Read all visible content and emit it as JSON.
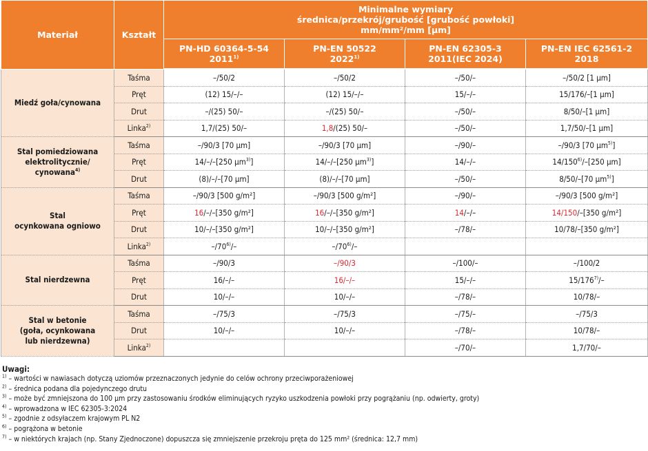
{
  "header": {
    "material": "Materiał",
    "shape": "Kształt",
    "dims_line1": "Minimalne wymiary",
    "dims_line2": "średnica/przekrój/grubość [grubość powłoki]",
    "dims_line3": "mm/mm²/mm [µm]",
    "standards": [
      {
        "name": "PN-HD 60364-5-54",
        "year": "2011",
        "sup": "1)"
      },
      {
        "name": "PN-EN 50522",
        "year": "2022",
        "sup": "1)"
      },
      {
        "name": "PN-EN 62305-3",
        "year": "2011(IEC 2024)",
        "sup": ""
      },
      {
        "name": "PN-EN IEC 62561-2",
        "year": "2018",
        "sup": ""
      }
    ]
  },
  "groups": [
    {
      "material": [
        {
          "t": "Miedź goła/cynowana"
        }
      ],
      "rows": [
        {
          "shape": [
            {
              "t": "Taśma"
            }
          ],
          "cells": [
            [
              {
                "t": "–/50/2"
              }
            ],
            [
              {
                "t": "–/50/2"
              }
            ],
            [
              {
                "t": "–/50/–"
              }
            ],
            [
              {
                "t": "–/50/2 [1 µm]"
              }
            ]
          ]
        },
        {
          "shape": [
            {
              "t": "Pręt"
            }
          ],
          "cells": [
            [
              {
                "t": "(12) 15/–/–"
              }
            ],
            [
              {
                "t": "(12) 15/–/–"
              }
            ],
            [
              {
                "t": "15/–/–"
              }
            ],
            [
              {
                "t": "15/176/–[1 µm]"
              }
            ]
          ]
        },
        {
          "shape": [
            {
              "t": "Drut"
            }
          ],
          "cells": [
            [
              {
                "t": "–/(25) 50/–"
              }
            ],
            [
              {
                "t": "–/(25) 50/–"
              }
            ],
            [
              {
                "t": "–/50/–"
              }
            ],
            [
              {
                "t": "8/50/–[1 µm]"
              }
            ]
          ]
        },
        {
          "shape": [
            {
              "t": "Linka"
            },
            {
              "t": "2)",
              "sup": true
            }
          ],
          "cells": [
            [
              {
                "t": "1,7/(25) 50/–"
              }
            ],
            [
              {
                "t": "1,8",
                "red": true
              },
              {
                "t": "/(25) 50/–"
              }
            ],
            [
              {
                "t": "–/50/–"
              }
            ],
            [
              {
                "t": "1,7/50/–[1 µm]"
              }
            ]
          ]
        }
      ]
    },
    {
      "material": [
        {
          "t": "Stal pomiedziowana"
        },
        {
          "br": true
        },
        {
          "t": "elektrolitycznie/"
        },
        {
          "br": true
        },
        {
          "t": "cynowana"
        },
        {
          "t": "4)",
          "sup": true
        }
      ],
      "rows": [
        {
          "shape": [
            {
              "t": "Taśma"
            }
          ],
          "cells": [
            [
              {
                "t": "–/90/3 [70 µm]"
              }
            ],
            [
              {
                "t": "–/90/3 [70 µm]"
              }
            ],
            [
              {
                "t": "–/90/–"
              }
            ],
            [
              {
                "t": "–/90/3 [70 µm"
              },
              {
                "t": "5)",
                "sup": true
              },
              {
                "t": "]"
              }
            ]
          ]
        },
        {
          "shape": [
            {
              "t": "Pręt"
            }
          ],
          "cells": [
            [
              {
                "t": "14/–/–[250 µm"
              },
              {
                "t": "3)",
                "sup": true
              },
              {
                "t": "]"
              }
            ],
            [
              {
                "t": "14/–/–[250 µm"
              },
              {
                "t": "3)",
                "sup": true
              },
              {
                "t": "]"
              }
            ],
            [
              {
                "t": "14/–/–"
              }
            ],
            [
              {
                "t": "14/150"
              },
              {
                "t": "6)",
                "sup": true
              },
              {
                "t": "/–[250 µm]"
              }
            ]
          ]
        },
        {
          "shape": [
            {
              "t": "Drut"
            }
          ],
          "cells": [
            [
              {
                "t": "(8)/–/–[70 µm]"
              }
            ],
            [
              {
                "t": "(8)/–/–[70 µm]"
              }
            ],
            [
              {
                "t": "–/50/–"
              }
            ],
            [
              {
                "t": "8/50/–[70 µm"
              },
              {
                "t": "5)",
                "sup": true
              },
              {
                "t": "]"
              }
            ]
          ]
        }
      ]
    },
    {
      "material": [
        {
          "t": "Stal"
        },
        {
          "br": true
        },
        {
          "t": "ocynkowana ogniowo"
        }
      ],
      "rows": [
        {
          "shape": [
            {
              "t": "Taśma"
            }
          ],
          "cells": [
            [
              {
                "t": "–/90/3 [500 g/m²]"
              }
            ],
            [
              {
                "t": "–/90/3 [500 g/m²]"
              }
            ],
            [
              {
                "t": "–/90/–"
              }
            ],
            [
              {
                "t": "–/90/3 [500 g/m²]"
              }
            ]
          ]
        },
        {
          "shape": [
            {
              "t": "Pręt"
            }
          ],
          "cells": [
            [
              {
                "t": "16",
                "red": true
              },
              {
                "t": "/–/–[350 g/m²]"
              }
            ],
            [
              {
                "t": "16",
                "red": true
              },
              {
                "t": "/–/–[350 g/m²]"
              }
            ],
            [
              {
                "t": "14",
                "red": true
              },
              {
                "t": "/–/–"
              }
            ],
            [
              {
                "t": "14/150",
                "red": true
              },
              {
                "t": "/–[350 g/m²]"
              }
            ]
          ]
        },
        {
          "shape": [
            {
              "t": "Drut"
            }
          ],
          "cells": [
            [
              {
                "t": "10/–/–[350 g/m²]"
              }
            ],
            [
              {
                "t": "10/–/–[350 g/m²]"
              }
            ],
            [
              {
                "t": "–/78/–"
              }
            ],
            [
              {
                "t": "10/78/–[350 g/m²]"
              }
            ]
          ]
        },
        {
          "shape": [
            {
              "t": "Linka"
            },
            {
              "t": "2)",
              "sup": true
            }
          ],
          "cells": [
            [
              {
                "t": "–/70"
              },
              {
                "t": "6)",
                "sup": true
              },
              {
                "t": "/–"
              }
            ],
            [
              {
                "t": "–/70"
              },
              {
                "t": "6)",
                "sup": true
              },
              {
                "t": "/–"
              }
            ],
            [],
            []
          ]
        }
      ]
    },
    {
      "material": [
        {
          "t": "Stal nierdzewna"
        }
      ],
      "rows": [
        {
          "shape": [
            {
              "t": "Taśma"
            }
          ],
          "cells": [
            [
              {
                "t": "–/90/3"
              }
            ],
            [
              {
                "t": "–/90/3",
                "red": true
              }
            ],
            [
              {
                "t": "–/100/–"
              }
            ],
            [
              {
                "t": "–/100/2"
              }
            ]
          ]
        },
        {
          "shape": [
            {
              "t": "Pręt"
            }
          ],
          "cells": [
            [
              {
                "t": "16/–/–"
              }
            ],
            [
              {
                "t": "16/–/–",
                "red": true
              }
            ],
            [
              {
                "t": "15/–/–"
              }
            ],
            [
              {
                "t": "15/176"
              },
              {
                "t": "7)",
                "sup": true
              },
              {
                "t": "/–"
              }
            ]
          ]
        },
        {
          "shape": [
            {
              "t": "Drut"
            }
          ],
          "cells": [
            [
              {
                "t": "10/–/–"
              }
            ],
            [
              {
                "t": "10/–/–"
              }
            ],
            [
              {
                "t": "–/78/–"
              }
            ],
            [
              {
                "t": "10/78/–"
              }
            ]
          ]
        }
      ]
    },
    {
      "material": [
        {
          "t": "Stal w betonie"
        },
        {
          "br": true
        },
        {
          "t": "(goła, ocynkowana"
        },
        {
          "br": true
        },
        {
          "t": "lub nierdzewna)"
        }
      ],
      "rows": [
        {
          "shape": [
            {
              "t": "Taśma"
            }
          ],
          "cells": [
            [
              {
                "t": "–/75/3"
              }
            ],
            [
              {
                "t": "–/75/3"
              }
            ],
            [
              {
                "t": "–/75/–"
              }
            ],
            [
              {
                "t": "–/75/3"
              }
            ]
          ]
        },
        {
          "shape": [
            {
              "t": "Drut"
            }
          ],
          "cells": [
            [
              {
                "t": "10/–/–"
              }
            ],
            [
              {
                "t": "10/–/–"
              }
            ],
            [
              {
                "t": "–/78/–"
              }
            ],
            [
              {
                "t": "10/78/–"
              }
            ]
          ]
        },
        {
          "shape": [
            {
              "t": "Linka"
            },
            {
              "t": "2)",
              "sup": true
            }
          ],
          "cells": [
            [],
            [],
            [
              {
                "t": "–/70/–"
              }
            ],
            [
              {
                "t": "1,7/70/–"
              }
            ]
          ]
        }
      ]
    }
  ],
  "notes": {
    "title": "Uwagi:",
    "items": [
      {
        "mark": "1)",
        "text": " – wartości w nawiasach dotyczą uziomów przeznaczonych jedynie do celów ochrony przeciwporażeniowej"
      },
      {
        "mark": "2)",
        "text": " – średnica podana dla pojedynczego drutu"
      },
      {
        "mark": "3)",
        "text": " – może być zmniejszona do 100 µm przy zastosowaniu środków eliminujących ryzyko uszkodzenia powłoki przy pogrążaniu (np. odwierty, groty)"
      },
      {
        "mark": "4)",
        "text": " – wprowadzona w IEC 62305-3:2024"
      },
      {
        "mark": "5)",
        "text": " – zgodnie z odsyłaczem krajowym PL N2"
      },
      {
        "mark": "6)",
        "text": " – pogrążona w betonie"
      },
      {
        "mark": "7)",
        "text": " – w niektórych krajach (np. Stany Zjednoczone) dopuszcza się zmniejszenie przekroju pręta do 125 mm² (średnica: 12,7 mm)"
      }
    ]
  },
  "colors": {
    "header_bg": "#ef7f2c",
    "material_bg": "#fbe5d2",
    "highlight": "#d9272e"
  }
}
